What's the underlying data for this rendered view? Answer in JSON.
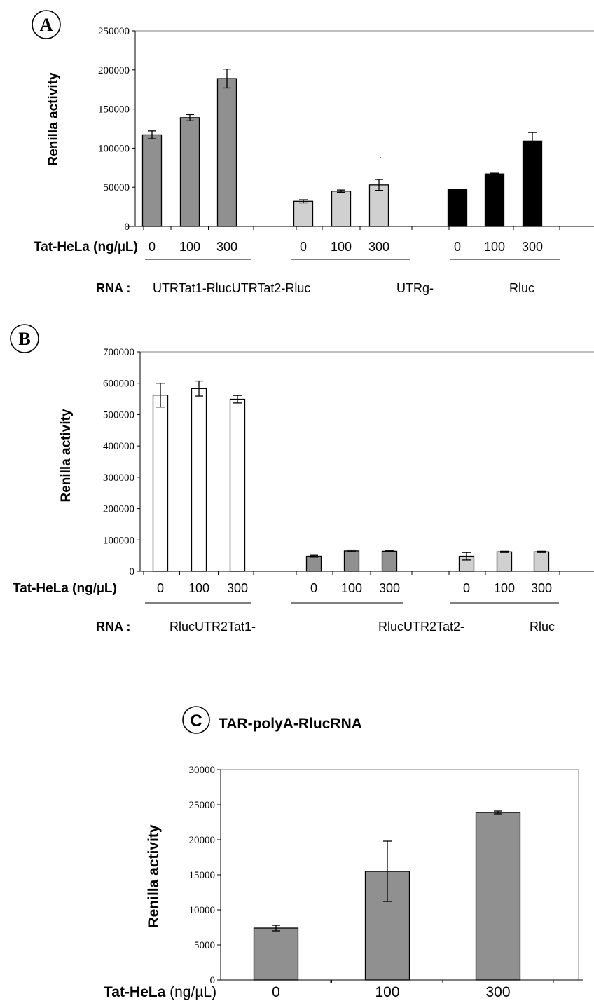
{
  "chart_data": [
    {
      "panel_label": "A",
      "type": "bar",
      "ylabel": "Renilla activity",
      "ylim": [
        0,
        250000
      ],
      "yticks": [
        "0",
        "50000",
        "100000",
        "150000",
        "200000",
        "250000"
      ],
      "x_axis_title": "Tat-HeLa (ng/µL)",
      "rna_label": "RNA :",
      "group_names": [
        "UTRTat1-RlucUTRTat2-Rluc",
        "UTRg-",
        "Rluc"
      ],
      "grid": false,
      "groups": [
        {
          "tick_labels": [
            "0",
            "100",
            "300"
          ],
          "values": [
            117000,
            139000,
            189000
          ],
          "errors": [
            5000,
            4000,
            12000
          ],
          "color": "#909090"
        },
        {
          "tick_labels": [
            "0",
            "100",
            "300"
          ],
          "values": [
            32000,
            45000,
            53000
          ],
          "errors": [
            2000,
            1500,
            7000
          ],
          "color": "#d0d0d0"
        },
        {
          "tick_labels": [
            "0",
            "100",
            "300"
          ],
          "values": [
            47000,
            67000,
            109000
          ],
          "errors": [
            800,
            1000,
            11000
          ],
          "color": "#000000"
        }
      ],
      "annotation": "."
    },
    {
      "panel_label": "B",
      "type": "bar",
      "ylabel": "Renilla activity",
      "ylim": [
        0,
        700000
      ],
      "yticks": [
        "0",
        "100000",
        "200000",
        "300000",
        "400000",
        "500000",
        "600000",
        "700000"
      ],
      "x_axis_title": "Tat-HeLa (ng/µL)",
      "rna_label": "RNA :",
      "group_names": [
        "RlucUTR2Tat1-",
        "RlucUTR2Tat2-",
        "Rluc"
      ],
      "grid": false,
      "groups": [
        {
          "tick_labels": [
            "0",
            "100",
            "300"
          ],
          "values": [
            562000,
            583000,
            549000
          ],
          "errors": [
            38000,
            24000,
            12000
          ],
          "color": "#ffffff"
        },
        {
          "tick_labels": [
            "0",
            "100",
            "300"
          ],
          "values": [
            48000,
            65000,
            64000
          ],
          "errors": [
            3000,
            3000,
            1500
          ],
          "color": "#909090"
        },
        {
          "tick_labels": [
            "0",
            "100",
            "300"
          ],
          "values": [
            48000,
            62000,
            62000
          ],
          "errors": [
            12000,
            2000,
            2000
          ],
          "color": "#d0d0d0"
        }
      ]
    },
    {
      "panel_label": "C",
      "type": "bar",
      "title": "TAR-polyA-RlucRNA",
      "ylabel": "Renilla activity",
      "ylim": [
        0,
        30000
      ],
      "yticks": [
        "0",
        "5000",
        "10000",
        "15000",
        "20000",
        "25000",
        "30000"
      ],
      "x_axis_title_bold": "Tat-HeLa",
      "x_axis_title_unit": " (ng/µL)",
      "grid": false,
      "categories": [
        "0",
        "100",
        "300"
      ],
      "values": [
        7400,
        15500,
        23900
      ],
      "errors": [
        400,
        4300,
        200
      ],
      "color": "#909090"
    }
  ]
}
